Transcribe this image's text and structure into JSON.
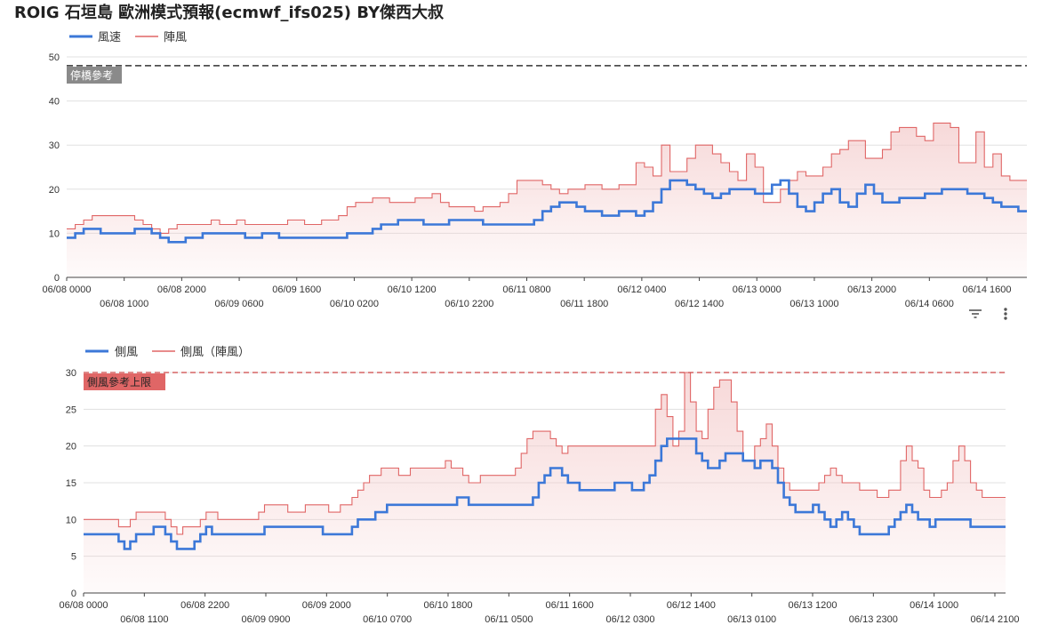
{
  "title": "ROIG 石垣島 歐洲模式預報(ecmwf_ifs025)  BY傑西大叔",
  "colors": {
    "primary": "#3c78d8",
    "gust": "#e06666",
    "fill": "#f4cccc",
    "ann1": "#8a8a8a",
    "ann2": "#e06666"
  },
  "toolbar": {
    "filter_icon": "filter-icon",
    "more_icon": "more-vert-icon"
  },
  "chart_data": [
    {
      "type": "line",
      "title": "風速 / 陣風",
      "series": [
        {
          "name": "風速",
          "values": [
            9,
            10,
            11,
            11,
            10,
            10,
            10,
            10,
            11,
            11,
            10,
            9,
            8,
            8,
            9,
            9,
            10,
            10,
            10,
            10,
            10,
            9,
            9,
            10,
            10,
            9,
            9,
            9,
            9,
            9,
            9,
            9,
            9,
            10,
            10,
            10,
            11,
            12,
            12,
            13,
            13,
            13,
            12,
            12,
            12,
            13,
            13,
            13,
            13,
            12,
            12,
            12,
            12,
            12,
            12,
            13,
            15,
            16,
            17,
            17,
            16,
            15,
            15,
            14,
            14,
            15,
            15,
            14,
            15,
            17,
            20,
            22,
            22,
            21,
            20,
            19,
            18,
            19,
            20,
            20,
            20,
            19,
            19,
            21,
            22,
            19,
            16,
            15,
            17,
            19,
            20,
            17,
            16,
            19,
            21,
            19,
            17,
            17,
            18,
            18,
            18,
            19,
            19,
            20,
            20,
            20,
            19,
            19,
            18,
            17,
            16,
            16,
            15
          ]
        },
        {
          "name": "陣風",
          "values": [
            11,
            12,
            13,
            14,
            14,
            14,
            14,
            14,
            13,
            12,
            11,
            10,
            11,
            12,
            12,
            12,
            12,
            13,
            12,
            12,
            13,
            12,
            12,
            12,
            12,
            12,
            13,
            13,
            12,
            12,
            13,
            13,
            14,
            16,
            17,
            17,
            18,
            18,
            17,
            17,
            17,
            18,
            18,
            19,
            17,
            16,
            16,
            16,
            15,
            16,
            16,
            17,
            19,
            22,
            22,
            22,
            21,
            20,
            19,
            20,
            20,
            21,
            21,
            20,
            20,
            21,
            21,
            26,
            25,
            23,
            30,
            24,
            24,
            27,
            30,
            30,
            28,
            26,
            24,
            22,
            28,
            25,
            17,
            17,
            20,
            22,
            24,
            23,
            23,
            25,
            28,
            29,
            31,
            31,
            27,
            27,
            29,
            33,
            34,
            34,
            32,
            31,
            35,
            35,
            34,
            26,
            26,
            33,
            25,
            28,
            23,
            22,
            22
          ]
        }
      ],
      "x_tick_labels_row1": [
        "06/08 0000",
        "06/08 2000",
        "06/09 1600",
        "06/10 1200",
        "06/11 0800",
        "06/12 0400",
        "06/13 0000",
        "06/13 2000",
        "06/14 1600"
      ],
      "x_tick_labels_row2": [
        "06/08 1000",
        "06/09 0600",
        "06/10 0200",
        "06/10 2200",
        "06/11 1800",
        "06/12 1400",
        "06/13 1000",
        "06/14 0600"
      ],
      "y_ticks": [
        "0",
        "10",
        "20",
        "30",
        "40",
        "50"
      ],
      "ylim": [
        0,
        50
      ],
      "reference_line": {
        "value": 48,
        "label": "停橋參考"
      },
      "legend_position": "top-left"
    },
    {
      "type": "line",
      "title": "側風 / 側風（陣風）",
      "series": [
        {
          "name": "側風",
          "values": [
            8,
            8,
            8,
            8,
            8,
            8,
            7,
            6,
            7,
            8,
            8,
            8,
            9,
            9,
            8,
            7,
            6,
            6,
            6,
            7,
            8,
            9,
            8,
            8,
            8,
            8,
            8,
            8,
            8,
            8,
            8,
            9,
            9,
            9,
            9,
            9,
            9,
            9,
            9,
            9,
            9,
            8,
            8,
            8,
            8,
            8,
            9,
            10,
            10,
            10,
            11,
            11,
            12,
            12,
            12,
            12,
            12,
            12,
            12,
            12,
            12,
            12,
            12,
            12,
            13,
            13,
            12,
            12,
            12,
            12,
            12,
            12,
            12,
            12,
            12,
            12,
            12,
            13,
            15,
            16,
            17,
            17,
            16,
            15,
            15,
            14,
            14,
            14,
            14,
            14,
            14,
            15,
            15,
            15,
            14,
            14,
            15,
            16,
            18,
            20,
            21,
            21,
            21,
            21,
            21,
            19,
            18,
            17,
            17,
            18,
            19,
            19,
            19,
            18,
            18,
            17,
            18,
            18,
            17,
            15,
            13,
            12,
            11,
            11,
            11,
            12,
            11,
            10,
            9,
            10,
            11,
            10,
            9,
            8,
            8,
            8,
            8,
            8,
            9,
            10,
            11,
            12,
            11,
            10,
            10,
            9,
            10,
            10,
            10,
            10,
            10,
            10,
            9,
            9,
            9,
            9,
            9,
            9
          ]
        },
        {
          "name": "側風（陣風）",
          "values": [
            10,
            10,
            10,
            10,
            10,
            10,
            9,
            9,
            10,
            11,
            11,
            11,
            11,
            11,
            10,
            9,
            8,
            9,
            9,
            9,
            10,
            11,
            11,
            10,
            10,
            10,
            10,
            10,
            10,
            10,
            11,
            12,
            12,
            12,
            12,
            11,
            11,
            11,
            12,
            12,
            12,
            12,
            11,
            11,
            12,
            12,
            13,
            14,
            15,
            16,
            16,
            17,
            17,
            17,
            16,
            16,
            17,
            17,
            17,
            17,
            17,
            17,
            18,
            17,
            17,
            16,
            15,
            15,
            16,
            16,
            16,
            16,
            16,
            16,
            17,
            19,
            21,
            22,
            22,
            22,
            21,
            20,
            19,
            20,
            20,
            20,
            20,
            20,
            20,
            20,
            20,
            20,
            20,
            20,
            20,
            20,
            20,
            20,
            25,
            27,
            24,
            20,
            22,
            30,
            26,
            22,
            21,
            25,
            28,
            29,
            29,
            26,
            22,
            18,
            18,
            20,
            21,
            23,
            20,
            17,
            15,
            14,
            14,
            14,
            14,
            14,
            15,
            16,
            17,
            16,
            15,
            15,
            15,
            14,
            14,
            14,
            13,
            13,
            14,
            14,
            18,
            20,
            18,
            17,
            14,
            13,
            13,
            14,
            15,
            18,
            20,
            18,
            15,
            14,
            13,
            13,
            13,
            13
          ]
        }
      ],
      "x_tick_labels_row1": [
        "06/08 0000",
        "06/08 2200",
        "06/09 2000",
        "06/10 1800",
        "06/11 1600",
        "06/12 1400",
        "06/13 1200",
        "06/14 1000"
      ],
      "x_tick_labels_row2": [
        "06/08 1100",
        "06/09 0900",
        "06/10 0700",
        "06/11 0500",
        "06/12 0300",
        "06/13 0100",
        "06/13 2300",
        "06/14 2100"
      ],
      "y_ticks": [
        "0",
        "5",
        "10",
        "15",
        "20",
        "25",
        "30"
      ],
      "ylim": [
        0,
        30
      ],
      "reference_line": {
        "value": 30,
        "label": "側風參考上限"
      },
      "legend_position": "top-left"
    }
  ]
}
